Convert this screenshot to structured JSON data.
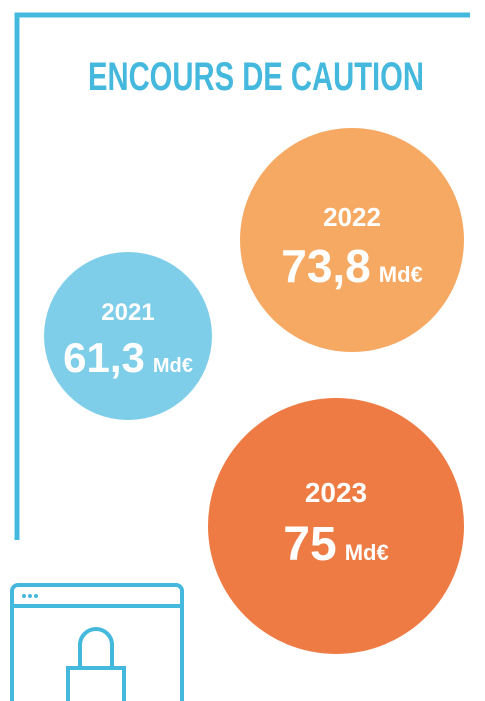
{
  "title": "ENCOURS DE CAUTION",
  "bubbles": [
    {
      "year": "2021",
      "value": "61,3",
      "unit": "Md€"
    },
    {
      "year": "2022",
      "value": "73,8",
      "unit": "Md€"
    },
    {
      "year": "2023",
      "value": "75",
      "unit": "Md€"
    }
  ]
}
